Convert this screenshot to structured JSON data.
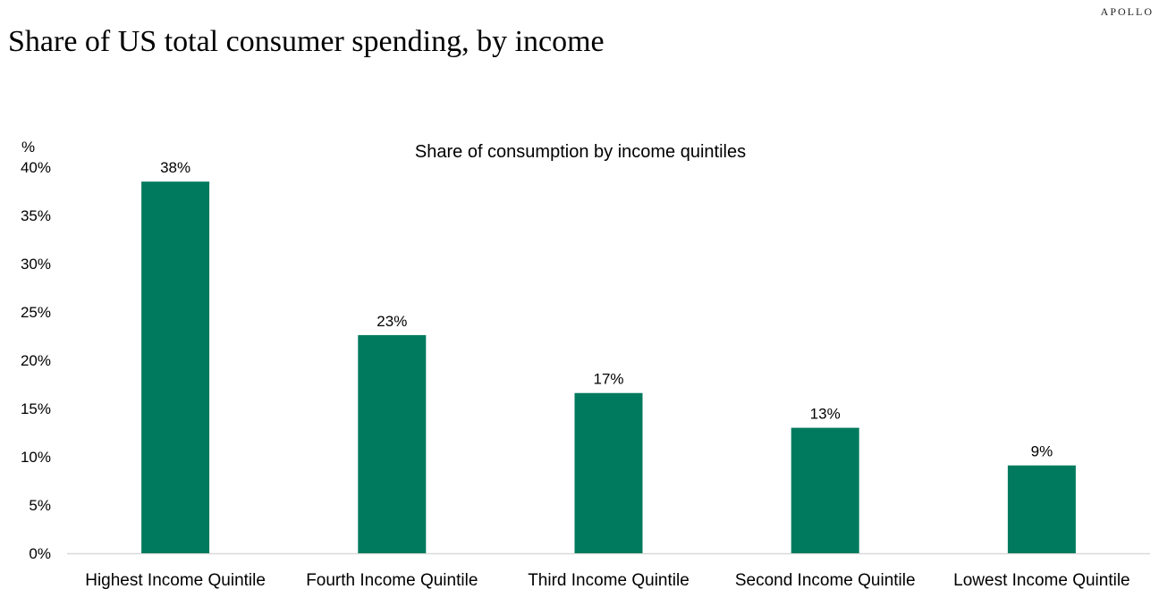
{
  "header": {
    "brand": "APOLLO",
    "title": "Share of US total consumer spending, by income"
  },
  "chart_data": {
    "type": "bar",
    "title": "Share of consumption by income quintiles",
    "y_unit_label": "%",
    "categories": [
      "Highest Income Quintile",
      "Fourth Income Quintile",
      "Third Income Quintile",
      "Second Income Quintile",
      "Lowest Income Quintile"
    ],
    "values": [
      38.5,
      22.6,
      16.6,
      13.0,
      9.1
    ],
    "data_labels": [
      "38%",
      "23%",
      "17%",
      "13%",
      "9%"
    ],
    "ylim": [
      0,
      40
    ],
    "yticks": [
      0,
      5,
      10,
      15,
      20,
      25,
      30,
      35,
      40
    ],
    "ytick_labels": [
      "0%",
      "5%",
      "10%",
      "15%",
      "20%",
      "25%",
      "30%",
      "35%",
      "40%"
    ],
    "grid": false,
    "legend": "none",
    "bar_color": "#007A5E",
    "axis_color": "#D9D9D9"
  }
}
